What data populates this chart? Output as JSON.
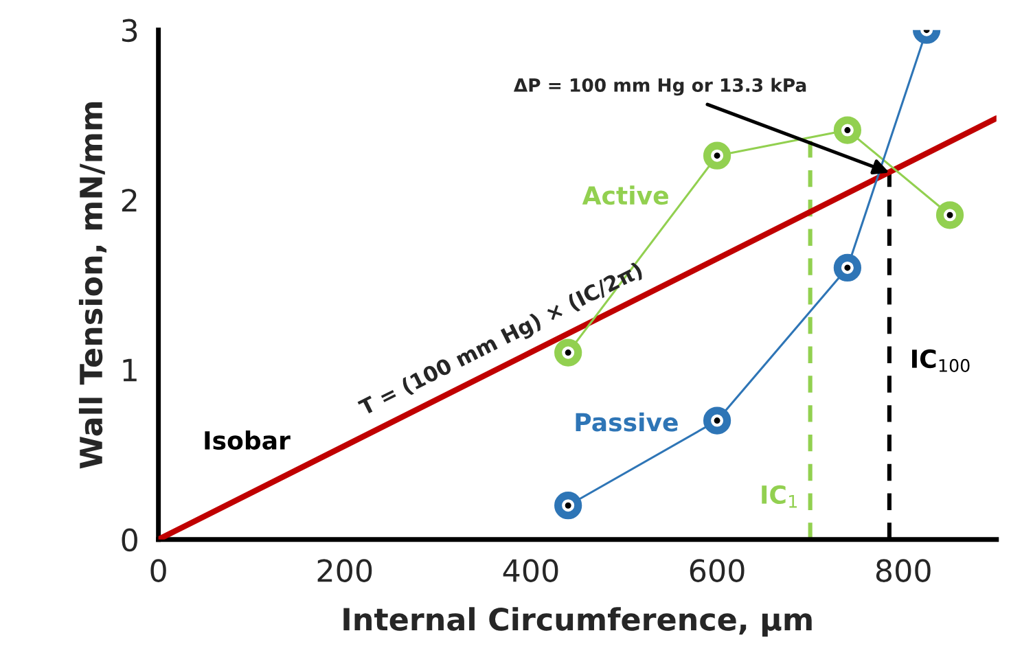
{
  "chart_data": {
    "type": "line",
    "xlabel": "Internal Circumference, µm",
    "ylabel": "Wall Tension, mN/mm",
    "xlim": [
      0,
      900
    ],
    "xticks": [
      0,
      200,
      400,
      600,
      800
    ],
    "ylim": [
      0,
      3
    ],
    "yticks": [
      0,
      1,
      2,
      3
    ],
    "marker": "circle",
    "grid": false,
    "legend": false,
    "series": [
      {
        "color": "#c00000",
        "x": [
          0,
          900
        ],
        "values": [
          0,
          2.48
        ],
        "marker": "none"
      },
      {
        "name": "Active",
        "color": "#92d050",
        "x": [
          440,
          600,
          740,
          850
        ],
        "values": [
          1.1,
          2.26,
          2.41,
          1.91
        ]
      },
      {
        "name": "Passive",
        "color": "#2e75b6",
        "x": [
          440,
          600,
          740,
          825
        ],
        "values": [
          0.2,
          0.7,
          1.6,
          3.0
        ]
      }
    ],
    "ref_lines": [
      {
        "axis": "x",
        "value": 700,
        "label": "IC$_{1}$",
        "color": "#92d050",
        "line_style": "dashed"
      },
      {
        "axis": "x",
        "value": 785,
        "label": "IC$_{100}$",
        "color": "#000000",
        "line_style": "dashed"
      }
    ],
    "annotations": [
      {
        "text": "ΔP = 100 mm Hg or 13.3 kPa",
        "x": 785,
        "y": 2.16
      },
      "T = (100 mm Hg) × (IC/2π)",
      {
        "text": "Isobar",
        "x": 150,
        "y": 0.41
      }
    ]
  }
}
